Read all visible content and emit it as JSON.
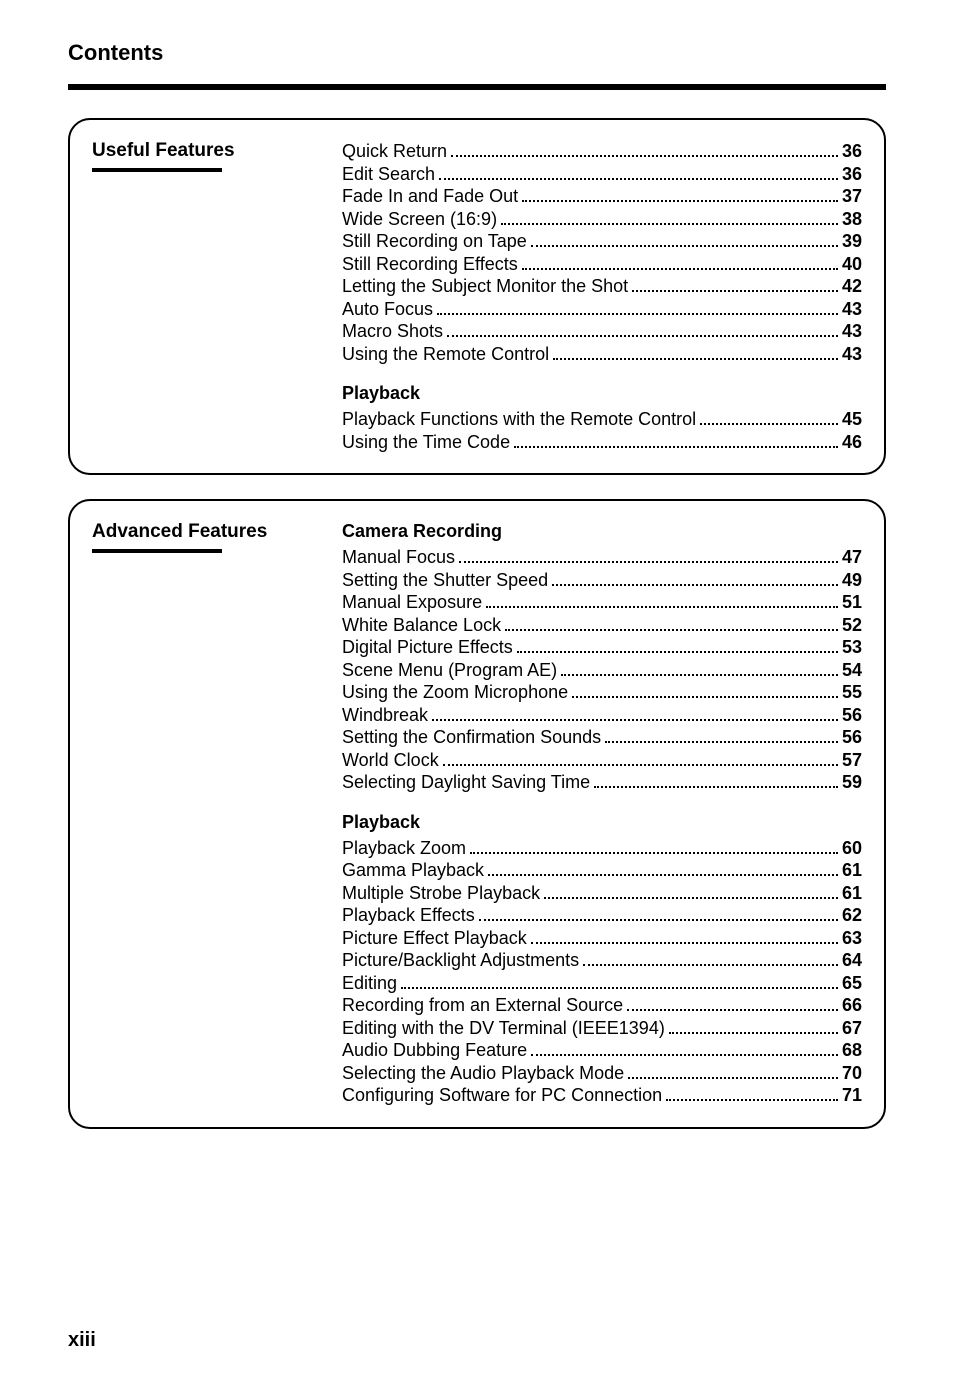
{
  "page_title": "Contents",
  "page_number": "xiii",
  "sections": [
    {
      "heading": "Useful Features",
      "groups": [
        {
          "title": null,
          "items": [
            {
              "label": "Quick Return",
              "page": "36"
            },
            {
              "label": "Edit Search",
              "page": "36"
            },
            {
              "label": "Fade In and Fade Out",
              "page": "37"
            },
            {
              "label": "Wide Screen (16:9)",
              "page": "38"
            },
            {
              "label": "Still Recording on Tape",
              "page": "39"
            },
            {
              "label": "Still Recording Effects",
              "page": "40"
            },
            {
              "label": "Letting the Subject Monitor the Shot",
              "page": "42"
            },
            {
              "label": "Auto Focus",
              "page": "43"
            },
            {
              "label": "Macro Shots",
              "page": "43"
            },
            {
              "label": "Using the Remote Control",
              "page": "43"
            }
          ]
        },
        {
          "title": "Playback",
          "items": [
            {
              "label": "Playback Functions with the Remote Control",
              "page": "45"
            },
            {
              "label": "Using the Time Code",
              "page": "46"
            }
          ]
        }
      ]
    },
    {
      "heading": "Advanced Features",
      "groups": [
        {
          "title": "Camera Recording",
          "items": [
            {
              "label": "Manual Focus",
              "page": "47"
            },
            {
              "label": "Setting the Shutter Speed",
              "page": "49"
            },
            {
              "label": "Manual Exposure",
              "page": "51"
            },
            {
              "label": "White Balance Lock",
              "page": "52"
            },
            {
              "label": "Digital Picture Effects",
              "page": "53"
            },
            {
              "label": "Scene Menu (Program AE)",
              "page": "54"
            },
            {
              "label": "Using the Zoom Microphone",
              "page": "55"
            },
            {
              "label": "Windbreak",
              "page": "56"
            },
            {
              "label": "Setting the Confirmation Sounds",
              "page": "56"
            },
            {
              "label": "World Clock",
              "page": "57"
            },
            {
              "label": "Selecting Daylight Saving Time",
              "page": "59"
            }
          ]
        },
        {
          "title": "Playback",
          "items": [
            {
              "label": "Playback Zoom",
              "page": "60"
            },
            {
              "label": "Gamma Playback",
              "page": "61"
            },
            {
              "label": "Multiple Strobe Playback",
              "page": "61"
            },
            {
              "label": "Playback Effects",
              "page": "62"
            },
            {
              "label": "Picture Effect Playback",
              "page": "63"
            },
            {
              "label": "Picture/Backlight Adjustments",
              "page": "64"
            },
            {
              "label": "Editing",
              "page": "65"
            },
            {
              "label": "Recording from an External Source",
              "page": "66"
            },
            {
              "label": "Editing with the DV Terminal (IEEE1394)",
              "page": "67"
            },
            {
              "label": "Audio Dubbing Feature",
              "page": "68"
            },
            {
              "label": "Selecting the Audio Playback Mode",
              "page": "70"
            },
            {
              "label": "Configuring Software for PC Connection",
              "page": "71"
            }
          ]
        }
      ]
    }
  ]
}
